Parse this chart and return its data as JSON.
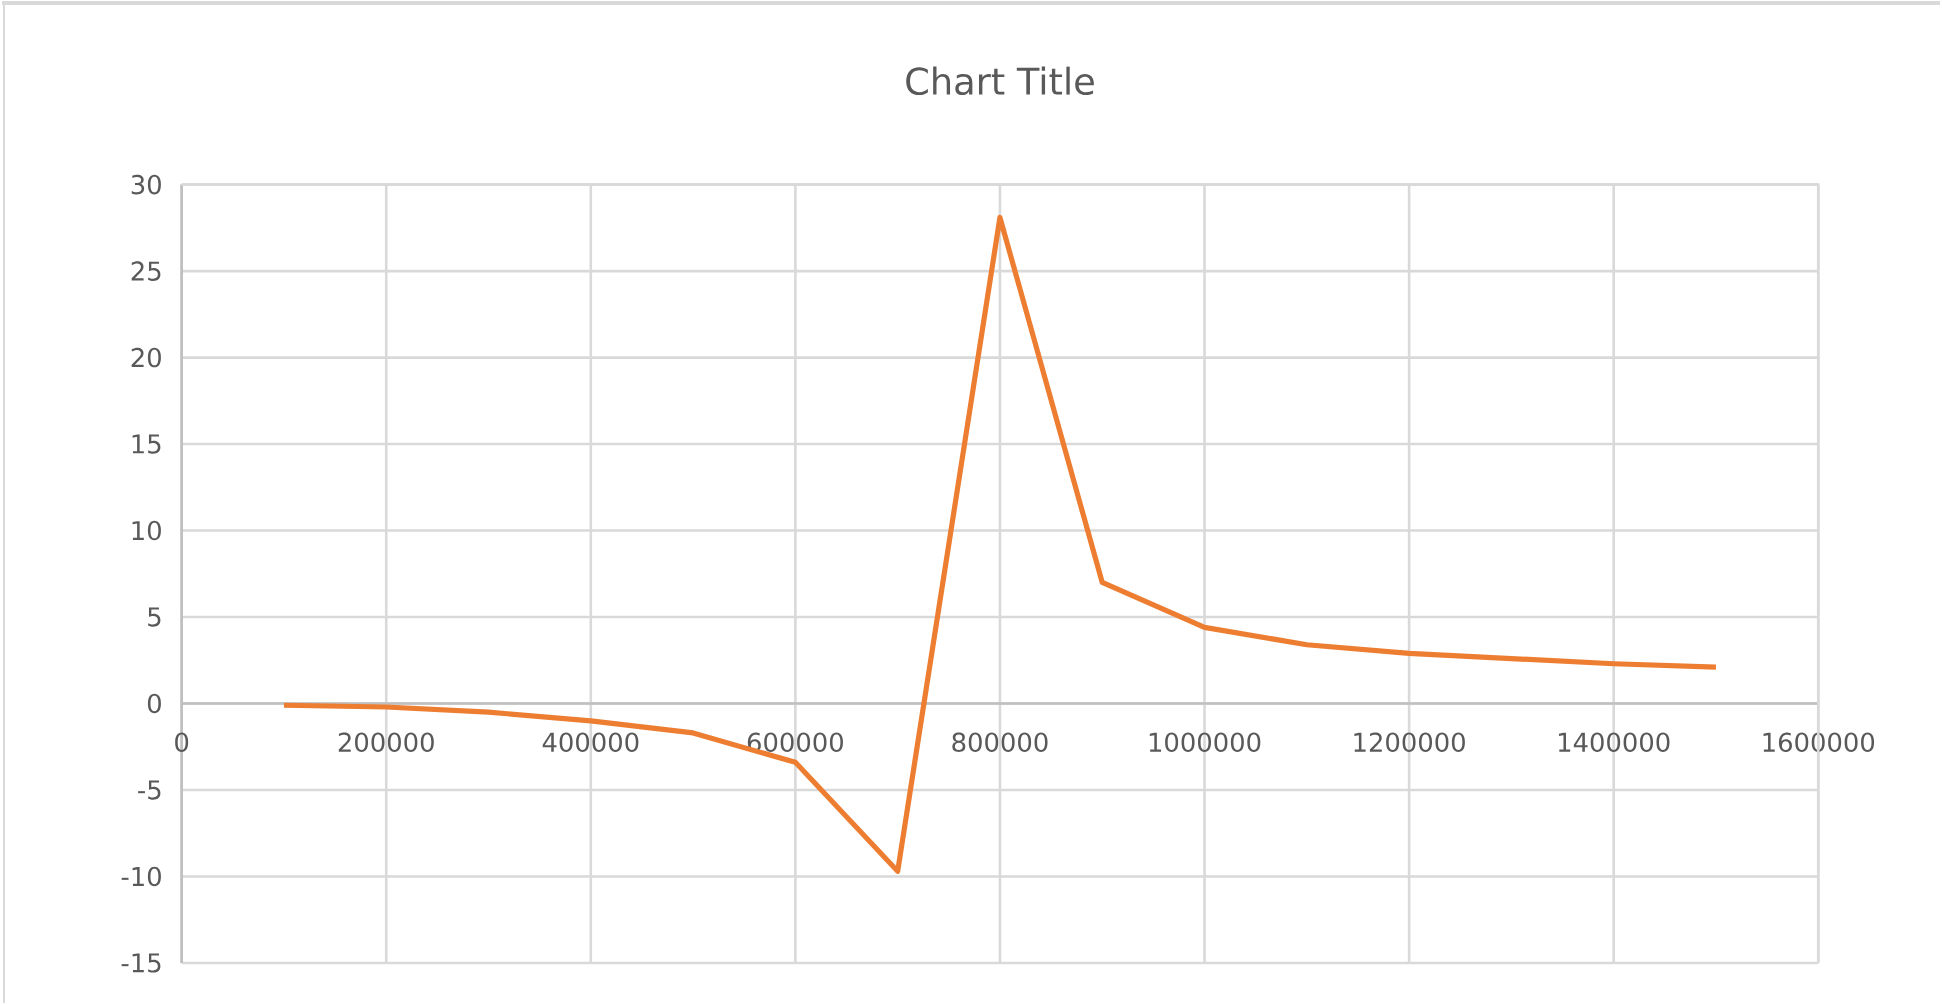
{
  "chart_data": {
    "type": "line",
    "title": "Chart Title",
    "x": [
      100000,
      200000,
      300000,
      400000,
      500000,
      600000,
      700000,
      800000,
      900000,
      1000000,
      1100000,
      1200000,
      1300000,
      1400000,
      1500000
    ],
    "series": [
      {
        "color": "#ed7d31",
        "values": [
          -0.1,
          -0.2,
          -0.5,
          -1.0,
          -1.7,
          -3.4,
          -9.7,
          28.1,
          7.0,
          4.4,
          3.4,
          2.9,
          2.6,
          2.3,
          2.1
        ]
      }
    ],
    "xlim": [
      0,
      1600000
    ],
    "xticks": [
      0,
      200000,
      400000,
      600000,
      800000,
      1000000,
      1200000,
      1400000,
      1600000
    ],
    "ylim": [
      -15,
      30
    ],
    "yticks": [
      -15,
      -10,
      -5,
      0,
      5,
      10,
      15,
      20,
      25,
      30
    ],
    "grid": true,
    "marker": "none",
    "line_style": "solid"
  }
}
